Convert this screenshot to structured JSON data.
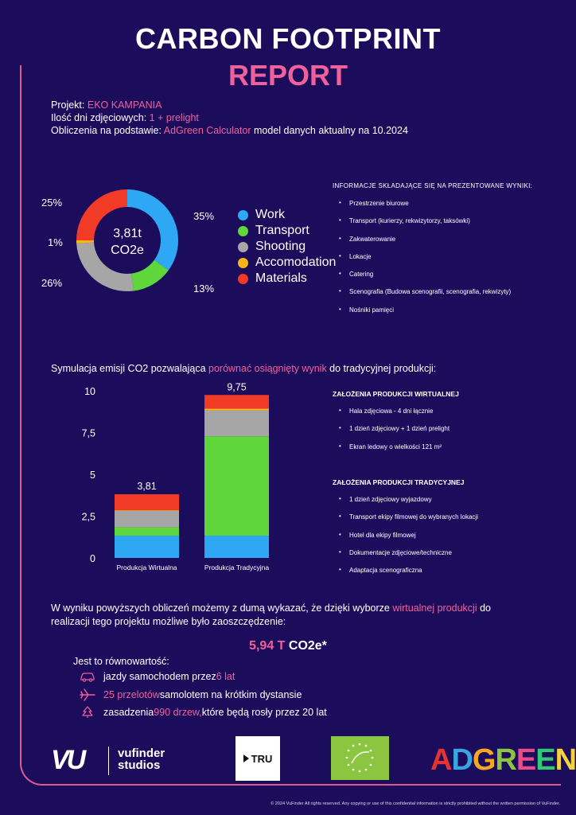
{
  "header": {
    "title_line1": "CARBON FOOTPRINT",
    "title_line2": "REPORT"
  },
  "project": {
    "label_project": "Projekt: ",
    "project_name": "EKO KAMPANIA",
    "label_days": "Ilość dni zdjęciowych: ",
    "days_value": "1 + prelight",
    "label_calc": "Obliczenia na podstawie: ",
    "calc_tool": "AdGreen Calculator",
    "calc_suffix": " model danych aktualny na 10.2024"
  },
  "donut": {
    "center_line1": "3,81t",
    "center_line2": "CO2e",
    "labels": {
      "work": "35%",
      "transport": "13%",
      "shooting": "26%",
      "accomodation": "1%",
      "materials": "25%"
    }
  },
  "colors": {
    "work": "#2ea8f5",
    "transport": "#5fd63c",
    "shooting": "#a6a6a6",
    "accomodation": "#f9b616",
    "materials": "#f23b26",
    "accent": "#f0609a",
    "background": "#1c0d5c"
  },
  "legend": [
    {
      "key": "work",
      "label": "Work",
      "color": "#2ea8f5"
    },
    {
      "key": "transport",
      "label": "Transport",
      "color": "#5fd63c"
    },
    {
      "key": "shooting",
      "label": "Shooting",
      "color": "#a6a6a6"
    },
    {
      "key": "accomodation",
      "label": "Accomodation",
      "color": "#f9b616"
    },
    {
      "key": "materials",
      "label": "Materials",
      "color": "#f23b26"
    }
  ],
  "info": {
    "title": "INFORMACJE SKŁADAJĄCE SIĘ NA PREZENTOWANE WYNIKI:",
    "items": [
      "Przestrzenie biurowe",
      "Transport (kurierzy, rekwizytorzy, taksówki)",
      "Zakwaterowanie",
      "Lokacje",
      "Catering",
      "Scenografia (Budowa scenografii, scenografia, rekwizyty)",
      "Nośniki pamięci"
    ]
  },
  "simulation": {
    "text_before": "Symulacja emisji CO2 pozwalająca ",
    "highlight": "porównać osiągnięty wynik",
    "text_after": " do tradycyjnej produkcji:"
  },
  "chart_data": [
    {
      "type": "pie",
      "values": [
        35,
        13,
        26,
        1,
        25
      ],
      "categories": [
        "Work",
        "Transport",
        "Shooting",
        "Accomodation",
        "Materials"
      ],
      "center_text": "3,81t CO2e",
      "legend_position": "right"
    },
    {
      "type": "bar",
      "stacked": true,
      "categories": [
        "Produkcja Wirtualna",
        "Produkcja Tradycyjna"
      ],
      "totals": [
        "3,81",
        "9,75"
      ],
      "series": [
        {
          "key": "work",
          "values": [
            1.33,
            1.33
          ]
        },
        {
          "key": "transport",
          "values": [
            0.5,
            5.95
          ]
        },
        {
          "key": "shooting",
          "values": [
            0.99,
            1.55
          ]
        },
        {
          "key": "accomodation",
          "values": [
            0.04,
            0.1
          ]
        },
        {
          "key": "materials",
          "values": [
            0.95,
            0.82
          ]
        }
      ],
      "yticks": [
        "0",
        "2,5",
        "5",
        "7,5",
        "10"
      ],
      "ylim": [
        0,
        10
      ],
      "grid": false
    }
  ],
  "assumptions": {
    "virtual_title": "ZAŁOŻENIA PRODUKCJI WIRTUALNEJ",
    "virtual_items": [
      "Hala zdjęciowa - 4 dni łącznie",
      "1 dzień zdjęciowy + 1 dzień prelight",
      "Ekran ledowy o wielkości 121 m²"
    ],
    "traditional_title": "ZAŁOŻENIA PRODUKCJI TRADYCYJNEJ",
    "traditional_items": [
      "1 dzień zdjęciowy wyjazdowy",
      "Transport ekipy filmowej do wybranych lokacji",
      "Hotel dla ekipy filmowej",
      "Dokumentacje zdjęciowe/techniczne",
      "Adaptacja scenograficzna"
    ]
  },
  "result": {
    "text_before": "W wyniku powyższych obliczeń możemy z dumą wykazać, że dzięki wyborze ",
    "highlight": "wirtualnej produkcji",
    "text_after": " do realizacji tego projektu możliwe było zaoszczędzenie:",
    "saving_value": "5,94 T",
    "saving_unit": " CO2e*"
  },
  "equivalent": {
    "title": "Jest to równowartość:",
    "car": {
      "before": "jazdy samochodem przez ",
      "highlight": "6 lat",
      "after": "",
      "icon": "car-icon"
    },
    "flight": {
      "before": "",
      "highlight": "25 przelotów",
      "after": " samolotem na krótkim dystansie",
      "icon": "plane-icon"
    },
    "trees": {
      "before": "zasadzenia ",
      "highlight": "990 drzew,",
      "after": " które będą rosły przez 20 lat",
      "icon": "tree-icon"
    }
  },
  "logos": {
    "vufinder_line1": "vufinder",
    "vufinder_line2": "studios",
    "vu_mark": "VU",
    "tru": "TRU",
    "adgreen": "ADGREEN"
  },
  "footer": "© 2024 VuFinder All rights reserved. Any copying or use of this confidential information is strictly prohibited without the written permission of VuFinder."
}
